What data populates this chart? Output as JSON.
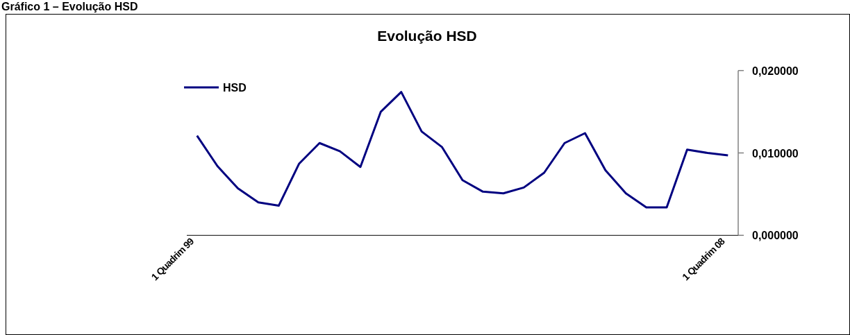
{
  "chart_data": {
    "type": "line",
    "title": "Evolução HSD",
    "annotations": [
      "Gráfico 1 – Evolução HSD"
    ],
    "categories": [
      "1 Quadrim 99",
      null,
      null,
      null,
      null,
      null,
      null,
      null,
      null,
      null,
      null,
      null,
      null,
      null,
      null,
      null,
      null,
      null,
      null,
      null,
      null,
      null,
      null,
      null,
      null,
      null,
      "1 Quadrim 08"
    ],
    "series": [
      {
        "name": "HSD",
        "color": "#000080",
        "values": [
          0.0121,
          0.0084,
          0.0057,
          0.004,
          0.0036,
          0.0087,
          0.0112,
          0.0102,
          0.0083,
          0.015,
          0.0174,
          0.0126,
          0.0107,
          0.0067,
          0.0053,
          0.0051,
          0.0058,
          0.0076,
          0.0112,
          0.0124,
          0.0079,
          0.0051,
          0.0034,
          0.0034,
          0.0104,
          0.01,
          0.0097
        ]
      }
    ],
    "ylim": [
      0,
      0.02
    ],
    "yticks": [
      {
        "value": 0,
        "label": "0,000000"
      },
      {
        "value": 0.01,
        "label": "0,010000"
      },
      {
        "value": 0.02,
        "label": "0,020000"
      }
    ],
    "grid": false,
    "legend": "top left",
    "marker": "none",
    "line_style": "solid"
  }
}
